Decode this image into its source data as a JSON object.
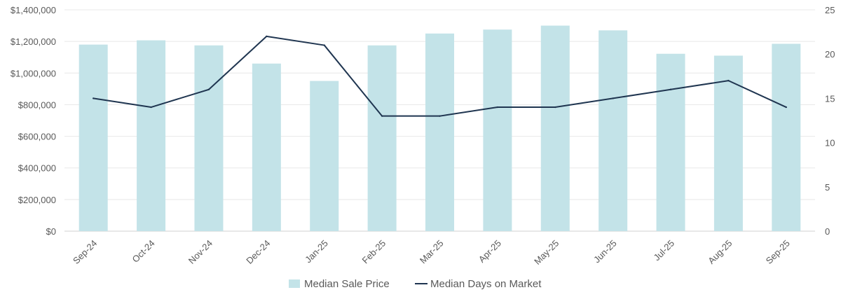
{
  "chart_data": {
    "type": "bar",
    "categories": [
      "Sep-24",
      "Oct-24",
      "Nov-24",
      "Dec-24",
      "Jan-25",
      "Feb-25",
      "Mar-25",
      "Apr-25",
      "May-25",
      "Jun-25",
      "Jul-25",
      "Aug-25",
      "Sep-25"
    ],
    "series": [
      {
        "name": "Median Sale Price",
        "type": "bar",
        "axis": "left",
        "color": "#c3e3e8",
        "values": [
          1180000,
          1207000,
          1175000,
          1060000,
          950000,
          1175000,
          1250000,
          1275000,
          1300000,
          1270000,
          1122000,
          1110000,
          1185000
        ]
      },
      {
        "name": "Median Days on Market",
        "type": "line",
        "axis": "right",
        "color": "#1f3550",
        "values": [
          15,
          14,
          16,
          22,
          21,
          13,
          13,
          14,
          14,
          15,
          16,
          17,
          14
        ]
      }
    ],
    "y_left": {
      "min": 0,
      "max": 1400000,
      "ticks": [
        0,
        200000,
        400000,
        600000,
        800000,
        1000000,
        1200000,
        1400000
      ],
      "tick_labels": [
        "$0",
        "$200,000",
        "$400,000",
        "$600,000",
        "$800,000",
        "$1,000,000",
        "$1,200,000",
        "$1,400,000"
      ]
    },
    "y_right": {
      "min": 0,
      "max": 25,
      "ticks": [
        0,
        5,
        10,
        15,
        20,
        25
      ],
      "tick_labels": [
        "0",
        "5",
        "10",
        "15",
        "20",
        "25"
      ]
    },
    "grid": true,
    "legend_position": "bottom",
    "title": "",
    "xlabel": "",
    "ylabel": ""
  }
}
